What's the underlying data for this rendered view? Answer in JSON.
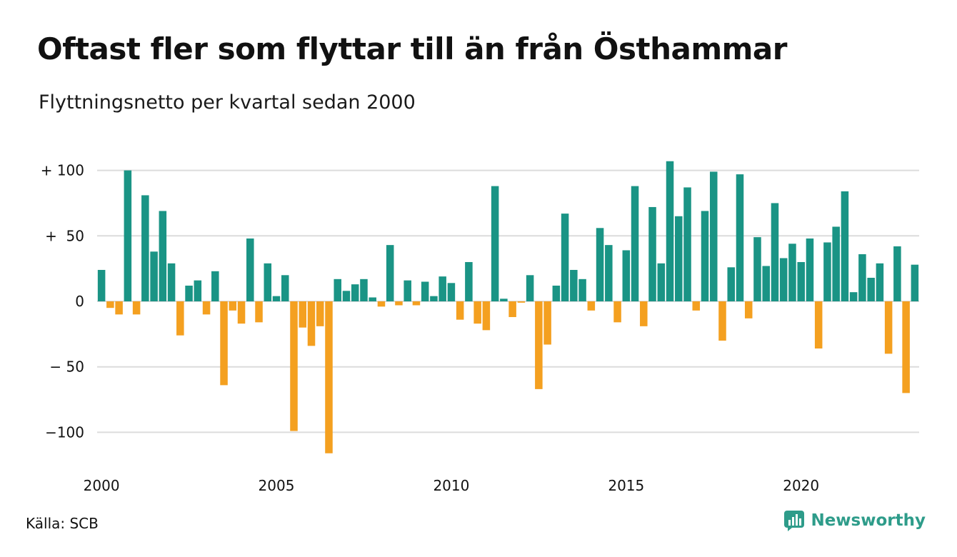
{
  "title": "Oftast fler som flyttar till än från Östhammar",
  "subtitle": "Flyttningsnetto per kvartal sedan 2000",
  "source": "Källa: SCB",
  "brand": "Newsworthy",
  "colors": {
    "positive": "#1a9485",
    "negative": "#f4a020",
    "grid": "#dcdcdc",
    "brand": "#2e9c8a"
  },
  "chart_data": {
    "type": "bar",
    "title": "Oftast fler som flyttar till än från Östhammar",
    "subtitle": "Flyttningsnetto per kvartal sedan 2000",
    "x_start": "2000 Q1",
    "x_step": "quarter",
    "ylim": [
      -120,
      110
    ],
    "yticks": [
      100,
      50,
      0,
      -50,
      -100
    ],
    "ytick_labels": [
      "+ 100",
      "+  50",
      "0",
      "− 50",
      "−100"
    ],
    "xticks": [
      2000,
      2005,
      2010,
      2015,
      2020
    ],
    "xtick_labels": [
      "2000",
      "2005",
      "2010",
      "2015",
      "2020"
    ],
    "grid": true,
    "values": [
      24,
      -5,
      -10,
      100,
      -10,
      81,
      38,
      69,
      29,
      -26,
      12,
      16,
      -10,
      23,
      -64,
      -7,
      -17,
      48,
      -16,
      29,
      4,
      20,
      -99,
      -20,
      -34,
      -19,
      -116,
      17,
      8,
      13,
      17,
      3,
      -4,
      43,
      -3,
      16,
      -3,
      15,
      4,
      19,
      14,
      -14,
      30,
      -17,
      -22,
      88,
      2,
      -12,
      -1,
      20,
      -67,
      -33,
      12,
      67,
      24,
      17,
      -7,
      56,
      43,
      -16,
      39,
      88,
      -19,
      72,
      29,
      107,
      65,
      87,
      -7,
      69,
      99,
      -30,
      26,
      97,
      -13,
      49,
      27,
      75,
      33,
      44,
      30,
      48,
      -36,
      45,
      57,
      84,
      7,
      36,
      18,
      29,
      -40,
      42,
      -70,
      28
    ]
  }
}
